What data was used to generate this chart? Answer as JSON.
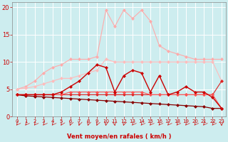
{
  "title": "",
  "xlabel": "Vent moyen/en rafales ( km/h )",
  "x": [
    0,
    1,
    2,
    3,
    4,
    5,
    6,
    7,
    8,
    9,
    10,
    11,
    12,
    13,
    14,
    15,
    16,
    17,
    18,
    19,
    20,
    21,
    22,
    23
  ],
  "line_pink_high": [
    5.0,
    5.5,
    6.5,
    8.0,
    9.0,
    9.5,
    10.5,
    10.5,
    10.5,
    11.0,
    19.5,
    16.5,
    19.5,
    18.0,
    19.5,
    17.5,
    13.0,
    12.0,
    11.5,
    11.0,
    10.5,
    10.5,
    10.5,
    10.5
  ],
  "line_pink_mid": [
    5.0,
    5.2,
    5.5,
    6.0,
    6.5,
    7.0,
    7.0,
    7.5,
    8.0,
    8.5,
    10.5,
    10.0,
    10.0,
    10.0,
    10.0,
    10.0,
    10.0,
    10.0,
    10.0,
    10.0,
    10.0,
    10.0,
    10.0,
    6.5
  ],
  "line_dark_jagged": [
    4.0,
    4.0,
    4.0,
    4.0,
    4.0,
    4.5,
    5.5,
    6.5,
    8.0,
    9.5,
    9.0,
    4.5,
    7.5,
    8.5,
    8.0,
    4.5,
    7.5,
    4.0,
    4.5,
    5.5,
    4.5,
    4.5,
    3.5,
    1.5
  ],
  "line_dark_slope": [
    4.0,
    3.8,
    3.7,
    3.6,
    3.5,
    3.4,
    3.3,
    3.2,
    3.1,
    3.0,
    2.9,
    2.8,
    2.7,
    2.6,
    2.5,
    2.4,
    2.3,
    2.2,
    2.1,
    2.0,
    1.9,
    1.8,
    1.5,
    1.5
  ],
  "line_flat_red": [
    4.0,
    4.0,
    4.0,
    4.0,
    4.0,
    4.0,
    4.0,
    4.0,
    4.0,
    4.0,
    4.0,
    4.0,
    4.0,
    4.0,
    4.0,
    4.0,
    4.0,
    4.0,
    4.0,
    4.0,
    4.0,
    4.0,
    4.0,
    6.5
  ],
  "line_low_red": [
    4.0,
    4.0,
    4.0,
    4.0,
    4.0,
    4.0,
    4.5,
    4.5,
    4.5,
    4.5,
    4.5,
    4.5,
    4.5,
    4.5,
    4.5,
    4.0,
    4.0,
    4.0,
    4.0,
    4.0,
    4.0,
    4.0,
    4.0,
    1.5
  ],
  "bg_color": "#cdedef",
  "grid_color": "#b0d8da",
  "ylim": [
    0,
    21
  ],
  "yticks": [
    0,
    5,
    10,
    15,
    20
  ],
  "xticks": [
    0,
    1,
    2,
    3,
    4,
    5,
    6,
    7,
    8,
    9,
    10,
    11,
    12,
    13,
    14,
    15,
    16,
    17,
    18,
    19,
    20,
    21,
    22,
    23
  ],
  "colors": {
    "line_pink_high": "#ffaaaa",
    "line_pink_mid": "#ffbbbb",
    "line_dark_jagged": "#cc0000",
    "line_dark_slope": "#880000",
    "line_flat_red": "#dd2222",
    "line_low_red": "#ff5555"
  },
  "arrow_color": "#cc2222",
  "tick_color": "#cc0000",
  "xlabel_color": "#cc0000"
}
